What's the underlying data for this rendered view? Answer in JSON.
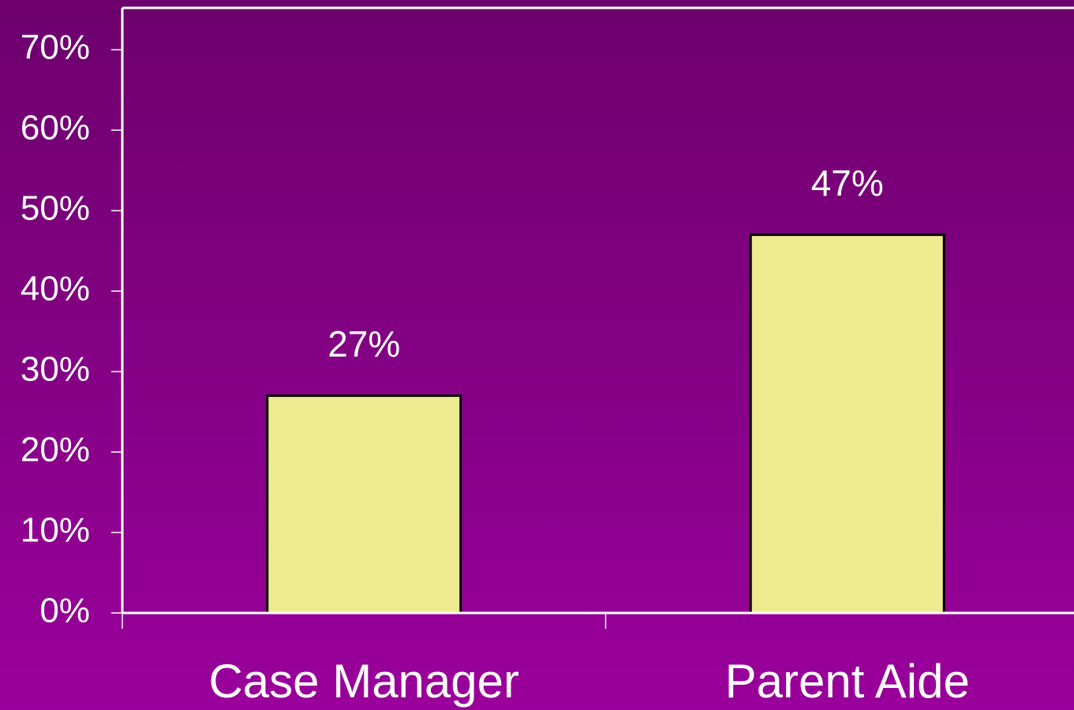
{
  "chart_data": {
    "type": "bar",
    "categories": [
      "Case Manager",
      "Parent Aide"
    ],
    "values": [
      27,
      47
    ],
    "value_labels": [
      "27%",
      "47%"
    ],
    "color": "#eeea90",
    "ylim": [
      0,
      75
    ],
    "yticks": [
      {
        "value": 0,
        "label": "0%"
      },
      {
        "value": 10,
        "label": "10%"
      },
      {
        "value": 20,
        "label": "20%"
      },
      {
        "value": 30,
        "label": "30%"
      },
      {
        "value": 40,
        "label": "40%"
      },
      {
        "value": 50,
        "label": "50%"
      },
      {
        "value": 60,
        "label": "60%"
      },
      {
        "value": 70,
        "label": "70%"
      }
    ],
    "grid": false
  }
}
